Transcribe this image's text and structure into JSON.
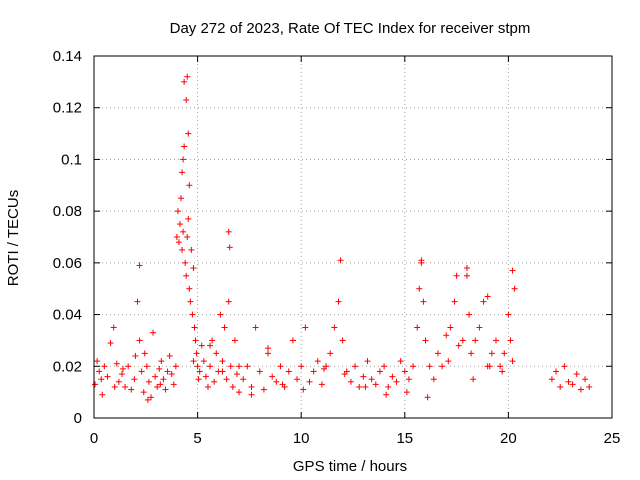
{
  "chart_data": {
    "type": "scatter",
    "title": "Day 272 of 2023, Rate Of TEC Index for receiver stpm",
    "xlabel": "GPS time / hours",
    "ylabel": "ROTI / TECUs",
    "xlim": [
      0,
      25
    ],
    "ylim": [
      0,
      0.14
    ],
    "xticks": [
      "0",
      "5",
      "10",
      "15",
      "20",
      "25"
    ],
    "yticks": [
      "0",
      "0.02",
      "0.04",
      "0.06",
      "0.08",
      "0.1",
      "0.12",
      "0.14"
    ],
    "grid": true,
    "marker": "plus",
    "color": "#ff0000",
    "series": [
      {
        "x": [
          0.05,
          0.15,
          0.25,
          0.35,
          0.5,
          0.65,
          0.8,
          0.95,
          1.1,
          1.2,
          1.35,
          1.5,
          1.65,
          1.8,
          1.95,
          2.1,
          2.2,
          2.3,
          2.4,
          2.45,
          2.55,
          2.65,
          2.75,
          2.85,
          2.95,
          3.05,
          3.15,
          3.25,
          3.35,
          3.45,
          3.55,
          3.65,
          3.75,
          3.85,
          3.95,
          4.0,
          4.05,
          4.1,
          4.15,
          4.2,
          4.25,
          4.3,
          4.3,
          4.35,
          4.4,
          4.45,
          4.5,
          4.55,
          4.6,
          4.65,
          4.7,
          4.75,
          4.8,
          4.85,
          4.9,
          4.95,
          5.0,
          5.05,
          5.1,
          5.2,
          5.3,
          5.4,
          5.5,
          5.6,
          5.7,
          5.8,
          5.9,
          6.0,
          6.1,
          6.2,
          6.3,
          6.4,
          6.5,
          6.6,
          6.7,
          6.8,
          6.9,
          7.0,
          7.2,
          7.4,
          7.6,
          7.8,
          8.0,
          8.2,
          8.4,
          8.6,
          8.8,
          9.0,
          9.2,
          9.4,
          9.6,
          9.8,
          10.0,
          10.2,
          10.4,
          10.6,
          10.8,
          11.0,
          11.2,
          11.4,
          11.6,
          11.8,
          12.0,
          12.2,
          12.4,
          12.6,
          12.8,
          13.0,
          13.2,
          13.4,
          13.6,
          13.8,
          14.0,
          14.2,
          14.4,
          14.6,
          14.8,
          15.0,
          15.2,
          15.4,
          15.6,
          15.7,
          15.8,
          15.9,
          16.0,
          16.2,
          16.4,
          16.6,
          16.8,
          17.0,
          17.2,
          17.4,
          17.6,
          17.8,
          18.0,
          18.1,
          18.2,
          18.4,
          18.6,
          18.8,
          19.0,
          19.2,
          19.4,
          19.6,
          19.8,
          20.0,
          20.1,
          20.2,
          22.1,
          22.3,
          22.5,
          22.7,
          22.9,
          23.1,
          23.3,
          23.5,
          23.7,
          23.9,
          0.4,
          1.0,
          1.4,
          2.0,
          2.6,
          3.2,
          4.8,
          5.6,
          6.2,
          7.0,
          7.6,
          8.4,
          9.1,
          10.1,
          11.1,
          12.1,
          13.1,
          14.1,
          15.1,
          16.1,
          17.1,
          18.3,
          19.1,
          19.7,
          4.45,
          4.35,
          4.55,
          4.25,
          4.6,
          4.5,
          2.2,
          6.5,
          6.55,
          11.9,
          15.8,
          17.5,
          18.0,
          19.0,
          20.2,
          20.3
        ],
        "y": [
          0.013,
          0.022,
          0.018,
          0.015,
          0.02,
          0.016,
          0.029,
          0.035,
          0.021,
          0.014,
          0.017,
          0.012,
          0.02,
          0.011,
          0.015,
          0.045,
          0.03,
          0.018,
          0.01,
          0.025,
          0.02,
          0.014,
          0.008,
          0.033,
          0.016,
          0.012,
          0.019,
          0.022,
          0.015,
          0.011,
          0.018,
          0.024,
          0.017,
          0.013,
          0.02,
          0.07,
          0.08,
          0.068,
          0.075,
          0.085,
          0.065,
          0.072,
          0.1,
          0.105,
          0.06,
          0.055,
          0.07,
          0.077,
          0.05,
          0.045,
          0.065,
          0.04,
          0.058,
          0.035,
          0.03,
          0.025,
          0.02,
          0.015,
          0.018,
          0.028,
          0.022,
          0.016,
          0.012,
          0.02,
          0.03,
          0.014,
          0.025,
          0.018,
          0.04,
          0.022,
          0.035,
          0.015,
          0.045,
          0.02,
          0.012,
          0.03,
          0.017,
          0.01,
          0.015,
          0.02,
          0.012,
          0.035,
          0.018,
          0.011,
          0.025,
          0.016,
          0.014,
          0.02,
          0.012,
          0.018,
          0.03,
          0.015,
          0.02,
          0.035,
          0.014,
          0.018,
          0.022,
          0.013,
          0.02,
          0.025,
          0.035,
          0.045,
          0.03,
          0.018,
          0.014,
          0.02,
          0.012,
          0.016,
          0.022,
          0.015,
          0.013,
          0.018,
          0.02,
          0.012,
          0.016,
          0.014,
          0.022,
          0.018,
          0.015,
          0.02,
          0.035,
          0.05,
          0.06,
          0.045,
          0.03,
          0.02,
          0.015,
          0.025,
          0.02,
          0.032,
          0.035,
          0.045,
          0.028,
          0.03,
          0.055,
          0.04,
          0.025,
          0.03,
          0.035,
          0.045,
          0.02,
          0.025,
          0.03,
          0.02,
          0.025,
          0.04,
          0.03,
          0.022,
          0.015,
          0.018,
          0.012,
          0.02,
          0.014,
          0.013,
          0.017,
          0.011,
          0.015,
          0.012,
          0.009,
          0.012,
          0.019,
          0.024,
          0.007,
          0.013,
          0.022,
          0.028,
          0.018,
          0.02,
          0.009,
          0.027,
          0.013,
          0.011,
          0.019,
          0.017,
          0.012,
          0.009,
          0.01,
          0.008,
          0.022,
          0.015,
          0.02,
          0.018,
          0.123,
          0.13,
          0.11,
          0.095,
          0.09,
          0.132,
          0.059,
          0.072,
          0.066,
          0.061,
          0.061,
          0.055,
          0.058,
          0.047,
          0.057,
          0.05
        ]
      }
    ]
  }
}
